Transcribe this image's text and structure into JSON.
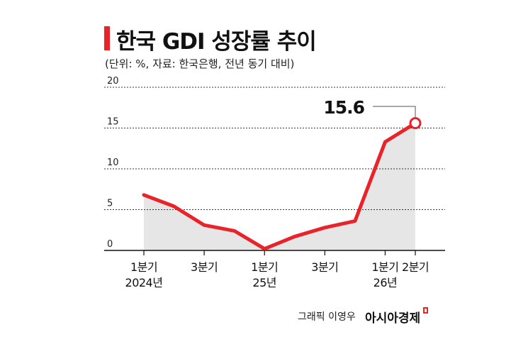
{
  "header": {
    "title": "한국 GDI 성장률 추이",
    "subtitle": "(단위: %, 자료: 한국은행, 전년 동기 대비)"
  },
  "footer": {
    "credit": "그래픽 이영우",
    "brand": "아시아경제"
  },
  "colors": {
    "line": "#e8232a",
    "area": "#e6e6e6",
    "grid": "#333333"
  },
  "chart_data": {
    "type": "line",
    "ylim": [
      0,
      20
    ],
    "yticks": [
      "0",
      "5",
      "10",
      "15",
      "20"
    ],
    "grid": "dashed horizontal",
    "values": [
      6.8,
      5.4,
      3.1,
      2.4,
      0.2,
      1.7,
      2.8,
      3.6,
      13.3,
      15.6
    ],
    "xticks": [
      {
        "index": 0,
        "lines": [
          "1분기",
          "2024년"
        ]
      },
      {
        "index": 2,
        "lines": [
          "3분기"
        ]
      },
      {
        "index": 4,
        "lines": [
          "1분기",
          "25년"
        ]
      },
      {
        "index": 6,
        "lines": [
          "3분기"
        ]
      },
      {
        "index": 8,
        "lines": [
          "1분기",
          "26년"
        ]
      },
      {
        "index": 9,
        "lines": [
          "2분기"
        ]
      }
    ],
    "annotation": {
      "index": 9,
      "text": "15.6"
    }
  }
}
